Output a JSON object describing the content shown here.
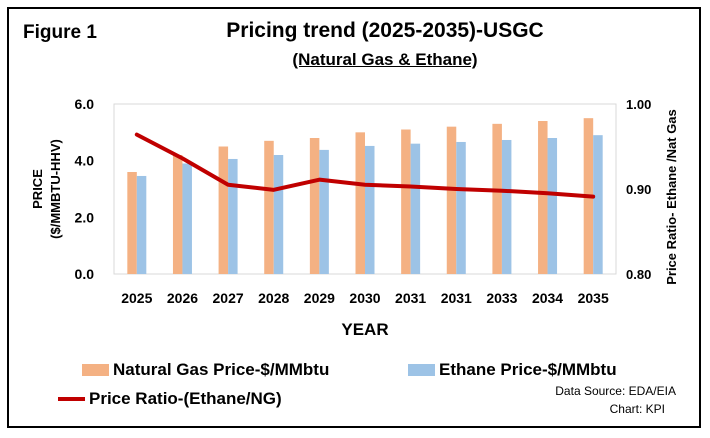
{
  "figure_label": "Figure 1",
  "title": "Pricing trend (2025-2035)-USGC",
  "subtitle": "(Natural Gas & Ethane)",
  "source_line1": "Data Source: EDA/EIA",
  "source_line2": "Chart: KPI",
  "colors": {
    "natural_gas": "#F4B183",
    "ethane": "#9DC3E6",
    "ratio": "#C00000",
    "grid": "#D9D9D9"
  },
  "chart_data": {
    "type": "bar",
    "title": "Pricing trend (2025-2035)-USGC",
    "subtitle": "(Natural Gas & Ethane)",
    "xlabel": "YEAR",
    "ylabel": "PRICE\n($/MMBTU-HHV)",
    "ylabel_line1": "PRICE",
    "ylabel_line2": "($/MMBTU-HHV)",
    "y2label": "Price Ratio- Ethane /Nat Gas",
    "ylim": [
      0,
      6
    ],
    "y2lim": [
      0.8,
      1.0
    ],
    "yticks": [
      "0.0",
      "2.0",
      "4.0",
      "6.0"
    ],
    "y2ticks": [
      "0.80",
      "0.90",
      "1.00"
    ],
    "categories": [
      "2025",
      "2026",
      "2027",
      "2028",
      "2029",
      "2030",
      "2031",
      "2031",
      "2033",
      "2034",
      "2035"
    ],
    "grid": false,
    "legend_position": "bottom",
    "series": [
      {
        "name": "Natural Gas Price-$/MMbtu",
        "type": "bar",
        "axis": "left",
        "values": [
          3.6,
          4.2,
          4.5,
          4.7,
          4.8,
          5.0,
          5.1,
          5.2,
          5.3,
          5.4,
          5.5
        ]
      },
      {
        "name": "Ethane Price-$/MMbtu",
        "type": "bar",
        "axis": "left",
        "values": [
          3.46,
          3.9,
          4.06,
          4.2,
          4.38,
          4.52,
          4.6,
          4.66,
          4.73,
          4.8,
          4.9
        ]
      },
      {
        "name": "Price Ratio-(Ethane/NG)",
        "type": "line",
        "axis": "right",
        "values": [
          0.964,
          0.936,
          0.905,
          0.899,
          0.911,
          0.905,
          0.903,
          0.9,
          0.898,
          0.895,
          0.891
        ]
      }
    ]
  }
}
